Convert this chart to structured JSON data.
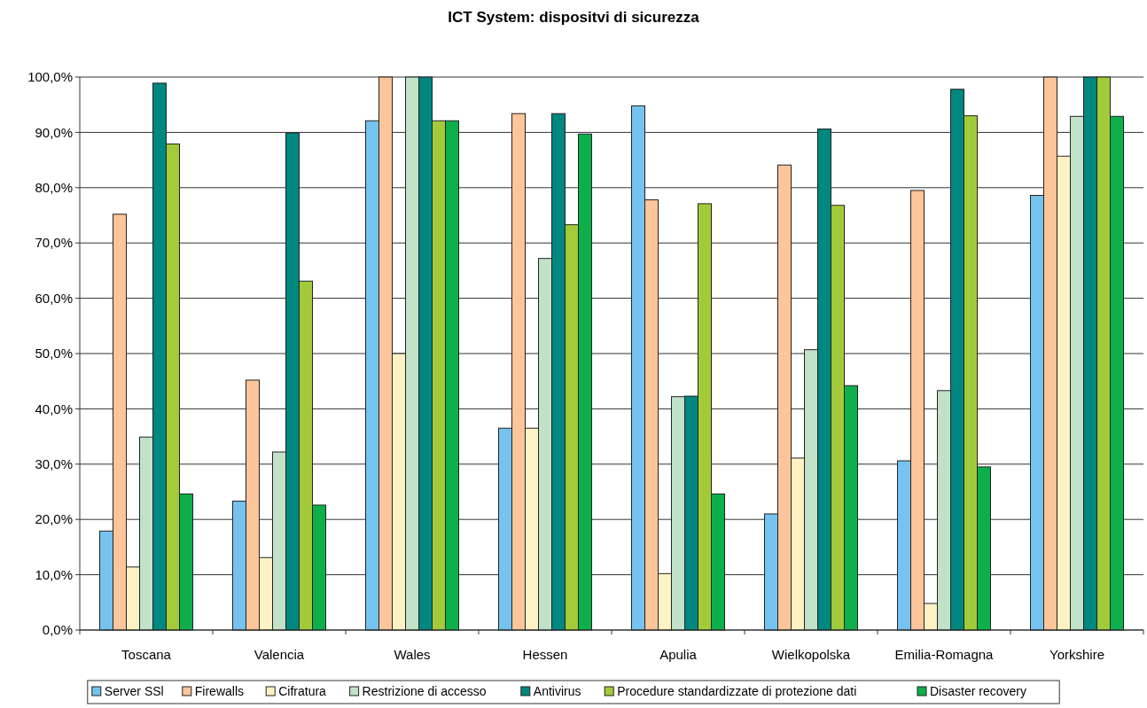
{
  "chart_data": {
    "type": "bar",
    "title": "ICT System: dispositvi di sicurezza",
    "categories": [
      "Toscana",
      "Valencia",
      "Wales",
      "Hessen",
      "Apulia",
      "Wielkopolska",
      "Emilia-Romagna",
      "Yorkshire"
    ],
    "series": [
      {
        "name": "Server SSl",
        "color": "#75c3ee",
        "values": [
          17.9,
          23.3,
          92.1,
          36.5,
          94.8,
          21.0,
          30.6,
          78.6
        ]
      },
      {
        "name": "Firewalls",
        "color": "#fdc59a",
        "values": [
          75.2,
          45.2,
          100,
          93.4,
          77.8,
          84.1,
          79.5,
          100
        ]
      },
      {
        "name": "Cifratura",
        "color": "#fef2c4",
        "values": [
          11.4,
          13.1,
          50.0,
          36.5,
          10.2,
          31.1,
          4.8,
          85.7
        ]
      },
      {
        "name": "Restrizione di accesso",
        "color": "#c1e2c8",
        "values": [
          34.9,
          32.2,
          100,
          67.2,
          42.2,
          50.7,
          43.3,
          92.9
        ]
      },
      {
        "name": "Antivirus",
        "color": "#008780",
        "values": [
          98.9,
          89.9,
          100,
          93.4,
          42.3,
          90.6,
          97.8,
          100
        ]
      },
      {
        "name": "Procedure standardizzate di protezione dati",
        "color": "#a3cb39",
        "values": [
          87.9,
          63.1,
          92.1,
          73.3,
          77.1,
          76.8,
          93.0,
          100
        ]
      },
      {
        "name": "Disaster recovery",
        "color": "#0daf4a",
        "values": [
          24.6,
          22.6,
          92.1,
          89.7,
          24.6,
          44.2,
          29.5,
          92.9
        ]
      }
    ],
    "ylim": [
      0,
      100
    ],
    "yticks": [
      {
        "value": 0,
        "label": "0,0%"
      },
      {
        "value": 10,
        "label": "10,0%"
      },
      {
        "value": 20,
        "label": "20,0%"
      },
      {
        "value": 30,
        "label": "30,0%"
      },
      {
        "value": 40,
        "label": "40,0%"
      },
      {
        "value": 50,
        "label": "50,0%"
      },
      {
        "value": 60,
        "label": "60,0%"
      },
      {
        "value": 70,
        "label": "70,0%"
      },
      {
        "value": 80,
        "label": "80,0%"
      },
      {
        "value": 90,
        "label": "90,0%"
      },
      {
        "value": 100,
        "label": "100,0%"
      }
    ],
    "grid": "y",
    "legend": "bottom"
  }
}
